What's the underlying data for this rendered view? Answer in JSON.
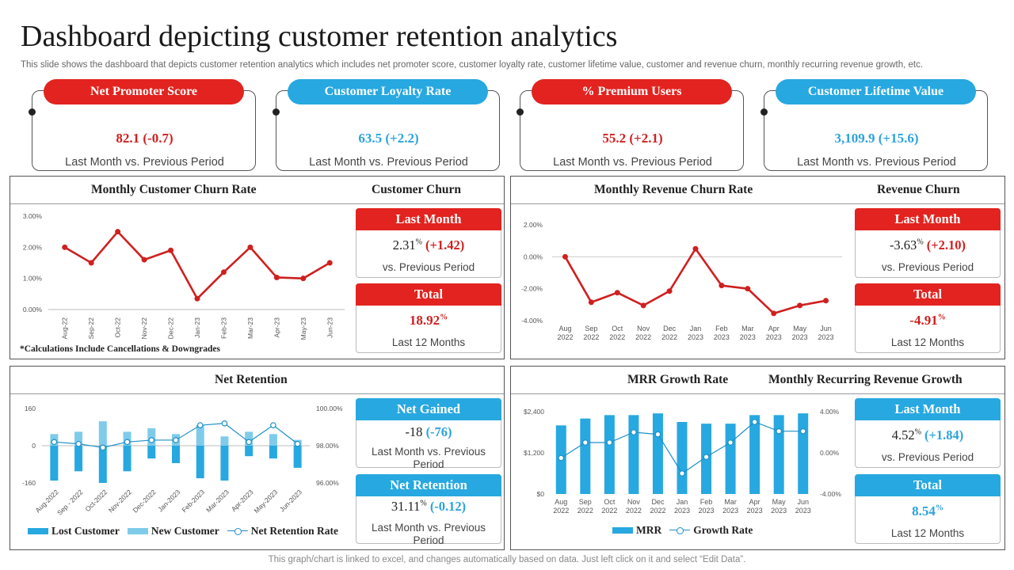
{
  "page": {
    "title": "Dashboard depicting customer retention analytics",
    "subtitle": "This slide shows the dashboard that depicts customer retention analytics which includes net promoter score, customer loyalty rate,  customer lifetime value, customer and revenue churn, monthly recurring revenue growth, etc.",
    "footer": "This graph/chart is linked to excel,  and changes automatically based on data. Just left click on it and select “Edit Data”."
  },
  "colors": {
    "red": "#e2231f",
    "blue": "#27a8e0",
    "light_blue": "#7fcbea",
    "line_red": "#cf2020"
  },
  "kpis": [
    {
      "label": "Net Promoter Score",
      "value": "82.1 (-0.7)",
      "caption": "Last Month vs. Previous Period",
      "color": "red"
    },
    {
      "label": "Customer Loyalty Rate",
      "value": "63.5 (+2.2)",
      "caption": "Last Month vs. Previous Period",
      "color": "blue"
    },
    {
      "label": "% Premium Users",
      "value": "55.2 (+2.1)",
      "caption": "Last Month vs. Previous Period",
      "color": "red"
    },
    {
      "label": "Customer Lifetime Value",
      "value": "3,109.9 (+15.6)",
      "caption": "Last Month vs. Previous Period",
      "color": "blue"
    }
  ],
  "panels": {
    "customer_churn": {
      "chart_title": "Monthly Customer Churn Rate",
      "side_title": "Customer Churn",
      "note": "*Calculations Include Cancellations & Downgrades",
      "cards": [
        {
          "head": "Last Month",
          "main": "2.31",
          "pct": "%",
          "delta": " (+1.42)",
          "sub": "vs. Previous  Period"
        },
        {
          "head": "Total",
          "main": "18.92",
          "pct": "%",
          "sub": "Last 12 Months"
        }
      ]
    },
    "revenue_churn": {
      "chart_title": "Monthly Revenue Churn Rate",
      "side_title": "Revenue Churn",
      "cards": [
        {
          "head": "Last Month",
          "main": "-3.63",
          "pct": "%",
          "delta": " (+2.10)",
          "sub": "vs. Previous  Period"
        },
        {
          "head": "Total",
          "main": "-4.91",
          "pct": "%",
          "sub": "Last 12 Months"
        }
      ]
    },
    "net_retention": {
      "chart_title": "Net Retention",
      "legend": [
        "Lost Customer",
        "New Customer",
        "Net Retention Rate"
      ],
      "cards": [
        {
          "head": "Net Gained",
          "main": "-18",
          "delta": " (-76)",
          "sub": "Last Month vs. Previous  Period"
        },
        {
          "head": "Net Retention",
          "main": "31.11",
          "pct": "%",
          "delta": " (-0.12)",
          "sub": "Last Month vs. Previous  Period"
        }
      ]
    },
    "mrr": {
      "chart_title": "MRR Growth Rate",
      "side_title": "Monthly Recurring Revenue Growth",
      "legend": [
        "MRR",
        "Growth Rate"
      ],
      "cards": [
        {
          "head": "Last Month",
          "main": "4.52",
          "pct": "%",
          "delta": " (+1.84)",
          "sub": "vs. Previous  Period"
        },
        {
          "head": "Total",
          "main": "8.54",
          "pct": "%",
          "sub": "Last 12 Months"
        }
      ]
    }
  },
  "chart_data": [
    {
      "type": "line",
      "title": "Monthly Customer Churn Rate",
      "categories": [
        "Aug-22",
        "Sep-22",
        "Oct-22",
        "Nov-22",
        "Dec-22",
        "Jan-23",
        "Feb-23",
        "Mar-23",
        "Apr-23",
        "May-23",
        "Jun-23"
      ],
      "values": [
        2.0,
        1.5,
        2.5,
        1.6,
        1.9,
        0.35,
        1.2,
        2.0,
        1.03,
        1.0,
        1.5
      ],
      "ylim": [
        0,
        3
      ],
      "yticks": [
        "0.00%",
        "1.00%",
        "2.00%",
        "3.00%"
      ],
      "color": "#cf2020"
    },
    {
      "type": "line",
      "title": "Monthly Revenue Churn Rate",
      "categories": [
        "Aug 2022",
        "Sep 2022",
        "Oct 2022",
        "Nov 2022",
        "Dec 2022",
        "Jan 2023",
        "Feb 2023",
        "Mar 2023",
        "Apr 2023",
        "May 2023",
        "Jun 2023"
      ],
      "values": [
        0.0,
        -2.85,
        -2.25,
        -3.05,
        -2.15,
        0.5,
        -1.8,
        -2.0,
        -3.55,
        -3.05,
        -2.75
      ],
      "ylim": [
        -4,
        2
      ],
      "yticks": [
        "-4.00%",
        "-2.00%",
        "0.00%",
        "2.00%"
      ],
      "color": "#cf2020"
    },
    {
      "type": "bar",
      "title": "Net Retention",
      "categories": [
        "Aug-2022",
        "Sep - 2022",
        "Oct-2022",
        "Nov-2022",
        "Dec-2022",
        "Jan-2023",
        "Feb-2023",
        "Mar-2023",
        "Apr-2023",
        "May-2023",
        "Jun-2023"
      ],
      "series": [
        {
          "name": "Lost Customer",
          "values": [
            -150,
            -110,
            -160,
            -110,
            -55,
            -75,
            -140,
            -150,
            -45,
            -55,
            -95
          ],
          "color": "#27a8e0"
        },
        {
          "name": "New Customer",
          "values": [
            50,
            60,
            105,
            60,
            75,
            50,
            90,
            40,
            60,
            50,
            25
          ],
          "color": "#7fcbea"
        },
        {
          "name": "Net Retention Rate",
          "type": "line",
          "axis": "right",
          "values": [
            98.2,
            98.1,
            97.9,
            98.2,
            98.3,
            98.3,
            99.1,
            99.2,
            98.2,
            99.1,
            98.1
          ],
          "color": "#1e90c8"
        }
      ],
      "ylim": [
        -160,
        160
      ],
      "yticks": [
        "-160",
        "0",
        "160"
      ],
      "y2lim": [
        96,
        100
      ],
      "y2ticks": [
        "96.00%",
        "98.00%",
        "100.00%"
      ]
    },
    {
      "type": "bar",
      "title": "MRR Growth Rate",
      "categories": [
        "Aug 2022",
        "Sep 2022",
        "Oct 2022",
        "Nov 2022",
        "Dec 2022",
        "Jan 2023",
        "Feb 2023",
        "Mar 2023",
        "Apr 2023",
        "May 2023",
        "Jun 2023"
      ],
      "series": [
        {
          "name": "MRR",
          "values": [
            2000,
            2200,
            2300,
            2300,
            2350,
            2100,
            2050,
            2050,
            2300,
            2300,
            2350
          ],
          "color": "#27a8e0"
        },
        {
          "name": "Growth Rate",
          "type": "line",
          "axis": "right",
          "values": [
            -0.5,
            1.0,
            1.0,
            2.0,
            1.8,
            -2.0,
            -0.4,
            1.0,
            3.0,
            2.1,
            2.1
          ],
          "color": "#1e90c8"
        }
      ],
      "ylim": [
        0,
        2400
      ],
      "yticks": [
        "$0",
        "$1,200",
        "$2,400"
      ],
      "y2lim": [
        -4,
        4
      ],
      "y2ticks": [
        "-4.00%",
        "0.00%",
        "4.00%"
      ]
    }
  ]
}
